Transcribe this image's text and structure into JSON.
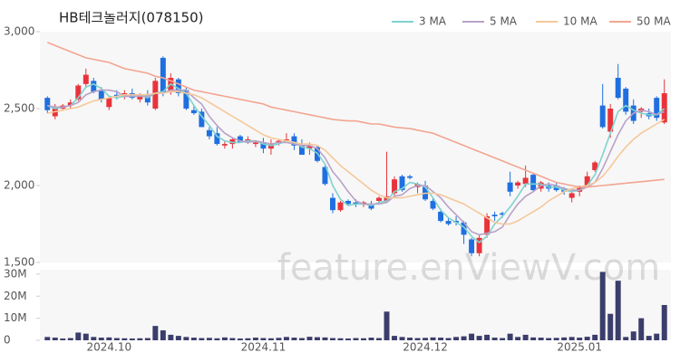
{
  "chart_data": [
    {
      "type": "candlestick",
      "title": "HB테크놀러지(078150)",
      "watermark": "feature.enViewV.com",
      "up_color": "#e8333b",
      "down_color": "#1f6fe0",
      "legend": "top-right",
      "categories": [
        null,
        null,
        null,
        null,
        null,
        null,
        null,
        null,
        "2024.10",
        null,
        null,
        null,
        null,
        null,
        null,
        null,
        null,
        null,
        null,
        null,
        null,
        null,
        null,
        null,
        null,
        null,
        null,
        null,
        "2024.11",
        null,
        null,
        null,
        null,
        null,
        null,
        null,
        null,
        null,
        null,
        null,
        null,
        null,
        null,
        null,
        null,
        null,
        null,
        null,
        null,
        "2024.12",
        null,
        null,
        null,
        null,
        null,
        null,
        null,
        null,
        null,
        null,
        null,
        null,
        null,
        null,
        null,
        null,
        null,
        null,
        null,
        "2025.01",
        null,
        null,
        null,
        null,
        null,
        null,
        null,
        null,
        null,
        null,
        null
      ],
      "open": [
        2570,
        2450,
        2500,
        2520,
        2560,
        2660,
        2680,
        2620,
        2510,
        2590,
        2580,
        2600,
        2560,
        2590,
        2500,
        2830,
        2610,
        2690,
        2620,
        2490,
        2480,
        2360,
        2340,
        2260,
        2270,
        2320,
        2290,
        2270,
        2280,
        2240,
        2280,
        2300,
        2320,
        2260,
        2240,
        2250,
        2120,
        1920,
        1840,
        1900,
        1890,
        1880,
        1880,
        1900,
        1900,
        1950,
        2060,
        2060,
        1990,
        2000,
        1900,
        1830,
        1770,
        1770,
        1760,
        1650,
        1560,
        1680,
        1810,
        1820,
        2020,
        2000,
        2010,
        2070,
        1980,
        2000,
        2000,
        1980,
        1920,
        1960,
        2000,
        2100,
        2520,
        2350,
        2700,
        2630,
        2520,
        2480,
        2470,
        2570,
        2410
      ],
      "high": [
        2580,
        2530,
        2530,
        2560,
        2660,
        2760,
        2700,
        2640,
        2580,
        2620,
        2620,
        2630,
        2600,
        2620,
        2700,
        2840,
        2730,
        2700,
        2640,
        2520,
        2500,
        2380,
        2380,
        2290,
        2310,
        2330,
        2320,
        2290,
        2310,
        2300,
        2300,
        2340,
        2340,
        2300,
        2280,
        2260,
        2140,
        1950,
        1900,
        1910,
        1910,
        1900,
        1900,
        1930,
        2220,
        2060,
        2070,
        2070,
        2020,
        2030,
        1920,
        1850,
        1790,
        1800,
        1770,
        1660,
        1680,
        1820,
        1830,
        1830,
        2090,
        2030,
        2130,
        2080,
        2030,
        2020,
        2020,
        1990,
        1960,
        2000,
        2090,
        2160,
        2660,
        2530,
        2790,
        2640,
        2560,
        2510,
        2500,
        2580,
        2690
      ],
      "low": [
        2470,
        2430,
        2490,
        2500,
        2550,
        2640,
        2600,
        2540,
        2490,
        2560,
        2560,
        2560,
        2540,
        2520,
        2490,
        2580,
        2590,
        2580,
        2490,
        2460,
        2380,
        2300,
        2260,
        2240,
        2240,
        2280,
        2270,
        2250,
        2210,
        2200,
        2260,
        2290,
        2230,
        2200,
        2200,
        2150,
        2000,
        1820,
        1830,
        1870,
        1860,
        1860,
        1840,
        1880,
        1890,
        1930,
        1960,
        2040,
        1950,
        1900,
        1840,
        1760,
        1740,
        1740,
        1620,
        1540,
        1540,
        1660,
        1770,
        1790,
        1930,
        1980,
        1990,
        1960,
        1960,
        1960,
        1960,
        1940,
        1890,
        1930,
        1990,
        2090,
        2370,
        2310,
        2560,
        2460,
        2400,
        2440,
        2430,
        2420,
        2400
      ],
      "close": [
        2490,
        2510,
        2520,
        2540,
        2650,
        2720,
        2610,
        2560,
        2570,
        2580,
        2600,
        2570,
        2590,
        2540,
        2680,
        2600,
        2700,
        2600,
        2500,
        2470,
        2380,
        2320,
        2270,
        2270,
        2300,
        2280,
        2300,
        2280,
        2240,
        2270,
        2290,
        2300,
        2260,
        2200,
        2260,
        2160,
        2010,
        1840,
        1890,
        1880,
        1880,
        1890,
        1850,
        1920,
        1930,
        2040,
        1970,
        2050,
        2010,
        1910,
        1850,
        1770,
        1750,
        1760,
        1680,
        1560,
        1660,
        1800,
        1800,
        1810,
        1960,
        2020,
        2050,
        1970,
        2020,
        1980,
        1970,
        1960,
        1950,
        1990,
        2060,
        2150,
        2380,
        2500,
        2570,
        2480,
        2420,
        2500,
        2450,
        2440,
        2600
      ],
      "series": [
        {
          "name": "3 MA",
          "color": "#7fd3cf",
          "values": [
            2520,
            2500,
            2510,
            2520,
            2570,
            2640,
            2660,
            2630,
            2580,
            2570,
            2580,
            2580,
            2590,
            2570,
            2600,
            2610,
            2660,
            2630,
            2600,
            2520,
            2450,
            2390,
            2320,
            2290,
            2280,
            2280,
            2290,
            2290,
            2270,
            2260,
            2270,
            2290,
            2280,
            2250,
            2240,
            2210,
            2140,
            2000,
            1910,
            1870,
            1880,
            1880,
            1870,
            1890,
            1900,
            1960,
            1980,
            2020,
            2010,
            1990,
            1920,
            1840,
            1790,
            1760,
            1730,
            1670,
            1630,
            1670,
            1750,
            1800,
            1860,
            1930,
            2010,
            2010,
            2010,
            1990,
            1990,
            1970,
            1960,
            1970,
            2000,
            2070,
            2200,
            2340,
            2480,
            2520,
            2490,
            2470,
            2460,
            2460,
            2500
          ]
        },
        {
          "name": "5 MA",
          "color": "#b8a2c8",
          "values": [
            2520,
            2510,
            2510,
            2520,
            2540,
            2590,
            2610,
            2620,
            2620,
            2610,
            2580,
            2580,
            2580,
            2580,
            2600,
            2600,
            2620,
            2620,
            2620,
            2570,
            2530,
            2450,
            2390,
            2340,
            2310,
            2290,
            2280,
            2290,
            2280,
            2270,
            2280,
            2280,
            2270,
            2260,
            2260,
            2240,
            2180,
            2090,
            2030,
            1960,
            1900,
            1880,
            1880,
            1880,
            1890,
            1930,
            1940,
            1980,
            2000,
            2000,
            1960,
            1920,
            1860,
            1810,
            1760,
            1700,
            1680,
            1690,
            1700,
            1730,
            1810,
            1880,
            1930,
            1960,
            2000,
            2010,
            2000,
            1980,
            1970,
            1970,
            1990,
            2020,
            2110,
            2220,
            2330,
            2420,
            2470,
            2490,
            2480,
            2460,
            2480
          ]
        },
        {
          "name": "10 MA",
          "color": "#f5c89a",
          "values": [
            2470,
            2480,
            2490,
            2500,
            2510,
            2530,
            2550,
            2560,
            2570,
            2580,
            2590,
            2590,
            2590,
            2590,
            2600,
            2600,
            2610,
            2610,
            2600,
            2590,
            2570,
            2540,
            2510,
            2480,
            2450,
            2420,
            2390,
            2360,
            2330,
            2310,
            2300,
            2290,
            2280,
            2270,
            2270,
            2260,
            2230,
            2180,
            2130,
            2090,
            2050,
            2010,
            1970,
            1940,
            1920,
            1920,
            1920,
            1930,
            1940,
            1950,
            1950,
            1940,
            1920,
            1900,
            1880,
            1850,
            1820,
            1790,
            1760,
            1750,
            1750,
            1770,
            1800,
            1830,
            1860,
            1900,
            1930,
            1960,
            1980,
            1990,
            2000,
            2020,
            2060,
            2120,
            2190,
            2250,
            2300,
            2340,
            2370,
            2400,
            2430
          ]
        },
        {
          "name": "50 MA",
          "color": "#f3a592",
          "values": [
            2930,
            2910,
            2890,
            2870,
            2850,
            2830,
            2820,
            2810,
            2800,
            2780,
            2760,
            2750,
            2740,
            2730,
            2710,
            2700,
            2680,
            2660,
            2640,
            2620,
            2610,
            2600,
            2590,
            2580,
            2570,
            2560,
            2550,
            2540,
            2530,
            2510,
            2500,
            2490,
            2480,
            2470,
            2460,
            2450,
            2440,
            2430,
            2425,
            2420,
            2420,
            2410,
            2400,
            2400,
            2390,
            2380,
            2375,
            2370,
            2360,
            2350,
            2340,
            2320,
            2300,
            2280,
            2260,
            2240,
            2220,
            2200,
            2180,
            2160,
            2140,
            2120,
            2100,
            2080,
            2060,
            2040,
            2020,
            2010,
            2000,
            1990,
            1990,
            1995,
            2000,
            2005,
            2010,
            2015,
            2020,
            2025,
            2030,
            2035,
            2040
          ]
        }
      ],
      "ylim": [
        1500,
        3000
      ],
      "yticks": [
        {
          "value": 1500,
          "label": "1,500"
        },
        {
          "value": 2000,
          "label": "2,000"
        },
        {
          "value": 2500,
          "label": "2,500"
        },
        {
          "value": 3000,
          "label": "3,000"
        }
      ]
    },
    {
      "type": "bar",
      "color": "#3b3d6b",
      "values": [
        1500000,
        1200000,
        800000,
        1000000,
        3500000,
        3000000,
        1500000,
        1200000,
        1300000,
        1000000,
        900000,
        800000,
        900000,
        1000000,
        6500000,
        4500000,
        2500000,
        2000000,
        1500000,
        1200000,
        1000000,
        1100000,
        900000,
        1300000,
        1000000,
        800000,
        900000,
        1200000,
        1000000,
        900000,
        1100000,
        1500000,
        1200000,
        1000000,
        1600000,
        1400000,
        1300000,
        1000000,
        900000,
        800000,
        1000000,
        900000,
        1200000,
        1000000,
        13000000,
        2000000,
        1500000,
        1200000,
        1000000,
        1100000,
        1300000,
        1200000,
        1000000,
        1500000,
        1800000,
        3000000,
        2000000,
        2500000,
        1200000,
        1000000,
        3000000,
        1500000,
        2500000,
        1300000,
        1200000,
        1000000,
        1100000,
        1300000,
        1500000,
        1200000,
        1600000,
        2500000,
        31000000,
        12000000,
        27000000,
        1500000,
        4000000,
        10000000,
        2000000,
        3000000,
        16000000
      ],
      "ylim": [
        0,
        32000000
      ],
      "yticks": [
        0,
        {
          "value": 10000000,
          "label": "10M"
        },
        {
          "value": 20000000,
          "label": "20M"
        },
        {
          "value": 30000000,
          "label": "30M"
        }
      ]
    }
  ]
}
